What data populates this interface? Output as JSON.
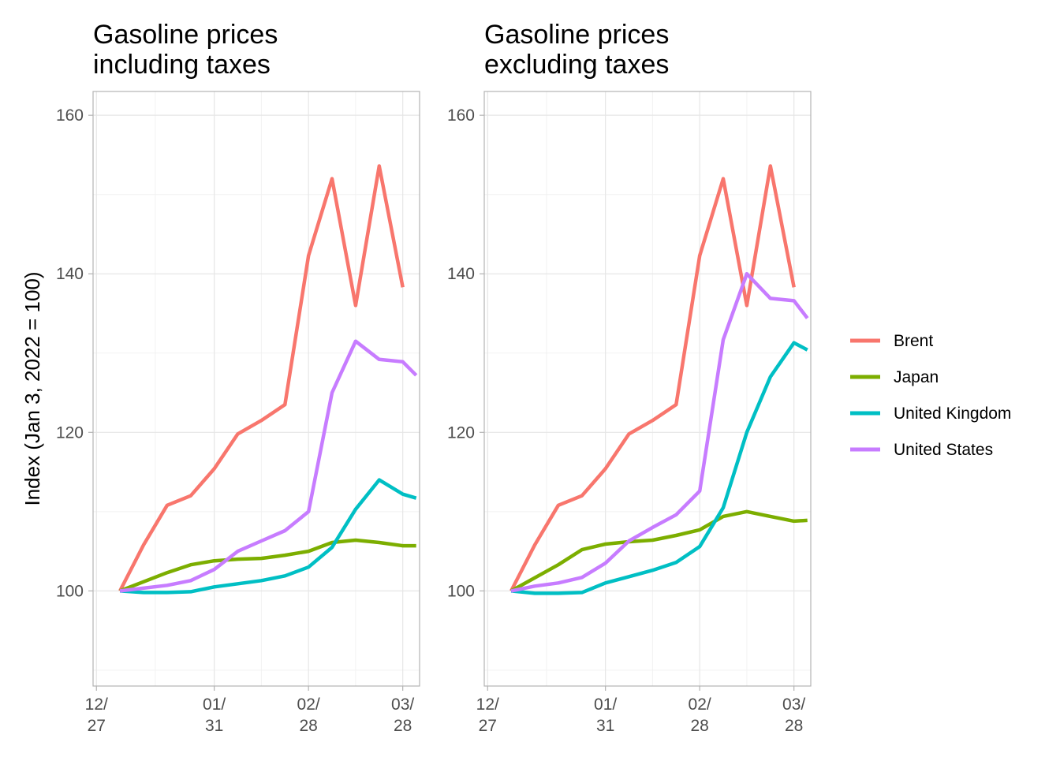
{
  "chart_data": [
    {
      "type": "line",
      "title": "Gasoline prices\nincluding taxes",
      "ylabel": "Index (Jan 3, 2022 = 100)",
      "xlabel": "",
      "ylim": [
        88,
        163
      ],
      "yticks": [
        100,
        120,
        140,
        160
      ],
      "xlim": [
        "2021-12-26",
        "2022-04-02"
      ],
      "xticks": [
        {
          "date": "2021-12-27",
          "label": "12/\n27"
        },
        {
          "date": "2022-01-31",
          "label": "01/\n31"
        },
        {
          "date": "2022-02-28",
          "label": "02/\n28"
        },
        {
          "date": "2022-03-28",
          "label": "03/\n28"
        }
      ],
      "grid": true,
      "series": [
        {
          "name": "Brent",
          "color": "#F8766D",
          "x": [
            "2022-01-03",
            "2022-01-10",
            "2022-01-17",
            "2022-01-24",
            "2022-01-31",
            "2022-02-07",
            "2022-02-14",
            "2022-02-21",
            "2022-02-28",
            "2022-03-07",
            "2022-03-14",
            "2022-03-21",
            "2022-03-28"
          ],
          "y": [
            100,
            105.8,
            110.8,
            112,
            115.4,
            119.8,
            121.5,
            123.5,
            142.3,
            152,
            136,
            153.6,
            138.3
          ]
        },
        {
          "name": "Japan",
          "color": "#7CAE00",
          "x": [
            "2022-01-03",
            "2022-01-17",
            "2022-01-24",
            "2022-01-31",
            "2022-02-07",
            "2022-02-14",
            "2022-02-21",
            "2022-02-28",
            "2022-03-07",
            "2022-03-14",
            "2022-03-21",
            "2022-03-28",
            "2022-04-01"
          ],
          "y": [
            100,
            102.3,
            103.3,
            103.8,
            104,
            104.1,
            104.5,
            105,
            106.1,
            106.4,
            106.1,
            105.7,
            105.7
          ]
        },
        {
          "name": "United Kingdom",
          "color": "#00BFC4",
          "x": [
            "2022-01-03",
            "2022-01-10",
            "2022-01-17",
            "2022-01-24",
            "2022-01-31",
            "2022-02-07",
            "2022-02-14",
            "2022-02-21",
            "2022-02-28",
            "2022-03-07",
            "2022-03-14",
            "2022-03-21",
            "2022-03-28",
            "2022-04-01"
          ],
          "y": [
            100,
            99.8,
            99.8,
            99.9,
            100.5,
            100.9,
            101.3,
            101.9,
            103,
            105.5,
            110.3,
            114,
            112.2,
            111.7
          ]
        },
        {
          "name": "United States",
          "color": "#C77CFF",
          "x": [
            "2022-01-03",
            "2022-01-17",
            "2022-01-24",
            "2022-01-31",
            "2022-02-07",
            "2022-02-14",
            "2022-02-21",
            "2022-02-28",
            "2022-03-07",
            "2022-03-14",
            "2022-03-21",
            "2022-03-28",
            "2022-04-01"
          ],
          "y": [
            100,
            100.7,
            101.3,
            102.7,
            105,
            106.3,
            107.6,
            110,
            125,
            131.5,
            129.2,
            128.9,
            127.2
          ]
        }
      ]
    },
    {
      "type": "line",
      "title": "Gasoline prices\nexcluding taxes",
      "ylabel": "",
      "xlabel": "",
      "ylim": [
        88,
        163
      ],
      "yticks": [
        100,
        120,
        140,
        160
      ],
      "xlim": [
        "2021-12-26",
        "2022-04-02"
      ],
      "xticks": [
        {
          "date": "2021-12-27",
          "label": "12/\n27"
        },
        {
          "date": "2022-01-31",
          "label": "01/\n31"
        },
        {
          "date": "2022-02-28",
          "label": "02/\n28"
        },
        {
          "date": "2022-03-28",
          "label": "03/\n28"
        }
      ],
      "grid": true,
      "series": [
        {
          "name": "Brent",
          "color": "#F8766D",
          "x": [
            "2022-01-03",
            "2022-01-10",
            "2022-01-17",
            "2022-01-24",
            "2022-01-31",
            "2022-02-07",
            "2022-02-14",
            "2022-02-21",
            "2022-02-28",
            "2022-03-07",
            "2022-03-14",
            "2022-03-21",
            "2022-03-28"
          ],
          "y": [
            100,
            105.8,
            110.8,
            112,
            115.4,
            119.8,
            121.5,
            123.5,
            142.3,
            152,
            136,
            153.6,
            138.3
          ]
        },
        {
          "name": "Japan",
          "color": "#7CAE00",
          "x": [
            "2022-01-03",
            "2022-01-17",
            "2022-01-24",
            "2022-01-31",
            "2022-02-07",
            "2022-02-14",
            "2022-02-21",
            "2022-02-28",
            "2022-03-07",
            "2022-03-14",
            "2022-03-21",
            "2022-03-28",
            "2022-04-01"
          ],
          "y": [
            100,
            103.3,
            105.2,
            105.9,
            106.2,
            106.4,
            107,
            107.7,
            109.4,
            110,
            109.4,
            108.8,
            108.9
          ]
        },
        {
          "name": "United Kingdom",
          "color": "#00BFC4",
          "x": [
            "2022-01-03",
            "2022-01-10",
            "2022-01-17",
            "2022-01-24",
            "2022-01-31",
            "2022-02-07",
            "2022-02-14",
            "2022-02-21",
            "2022-02-28",
            "2022-03-07",
            "2022-03-14",
            "2022-03-21",
            "2022-03-28",
            "2022-04-01"
          ],
          "y": [
            100,
            99.7,
            99.7,
            99.8,
            101,
            101.8,
            102.6,
            103.6,
            105.6,
            110.5,
            120,
            127,
            131.3,
            130.4
          ]
        },
        {
          "name": "United States",
          "color": "#C77CFF",
          "x": [
            "2022-01-03",
            "2022-01-10",
            "2022-01-17",
            "2022-01-24",
            "2022-01-31",
            "2022-02-07",
            "2022-02-14",
            "2022-02-21",
            "2022-02-28",
            "2022-03-07",
            "2022-03-14",
            "2022-03-21",
            "2022-03-28",
            "2022-04-01"
          ],
          "y": [
            100,
            100.6,
            101,
            101.7,
            103.5,
            106.3,
            108,
            109.6,
            112.6,
            131.7,
            140,
            136.9,
            136.6,
            134.4
          ]
        }
      ]
    }
  ],
  "legend": {
    "placement": "right",
    "entries": [
      {
        "name": "Brent",
        "color": "#F8766D"
      },
      {
        "name": "Japan",
        "color": "#7CAE00"
      },
      {
        "name": "United Kingdom",
        "color": "#00BFC4"
      },
      {
        "name": "United States",
        "color": "#C77CFF"
      }
    ]
  }
}
